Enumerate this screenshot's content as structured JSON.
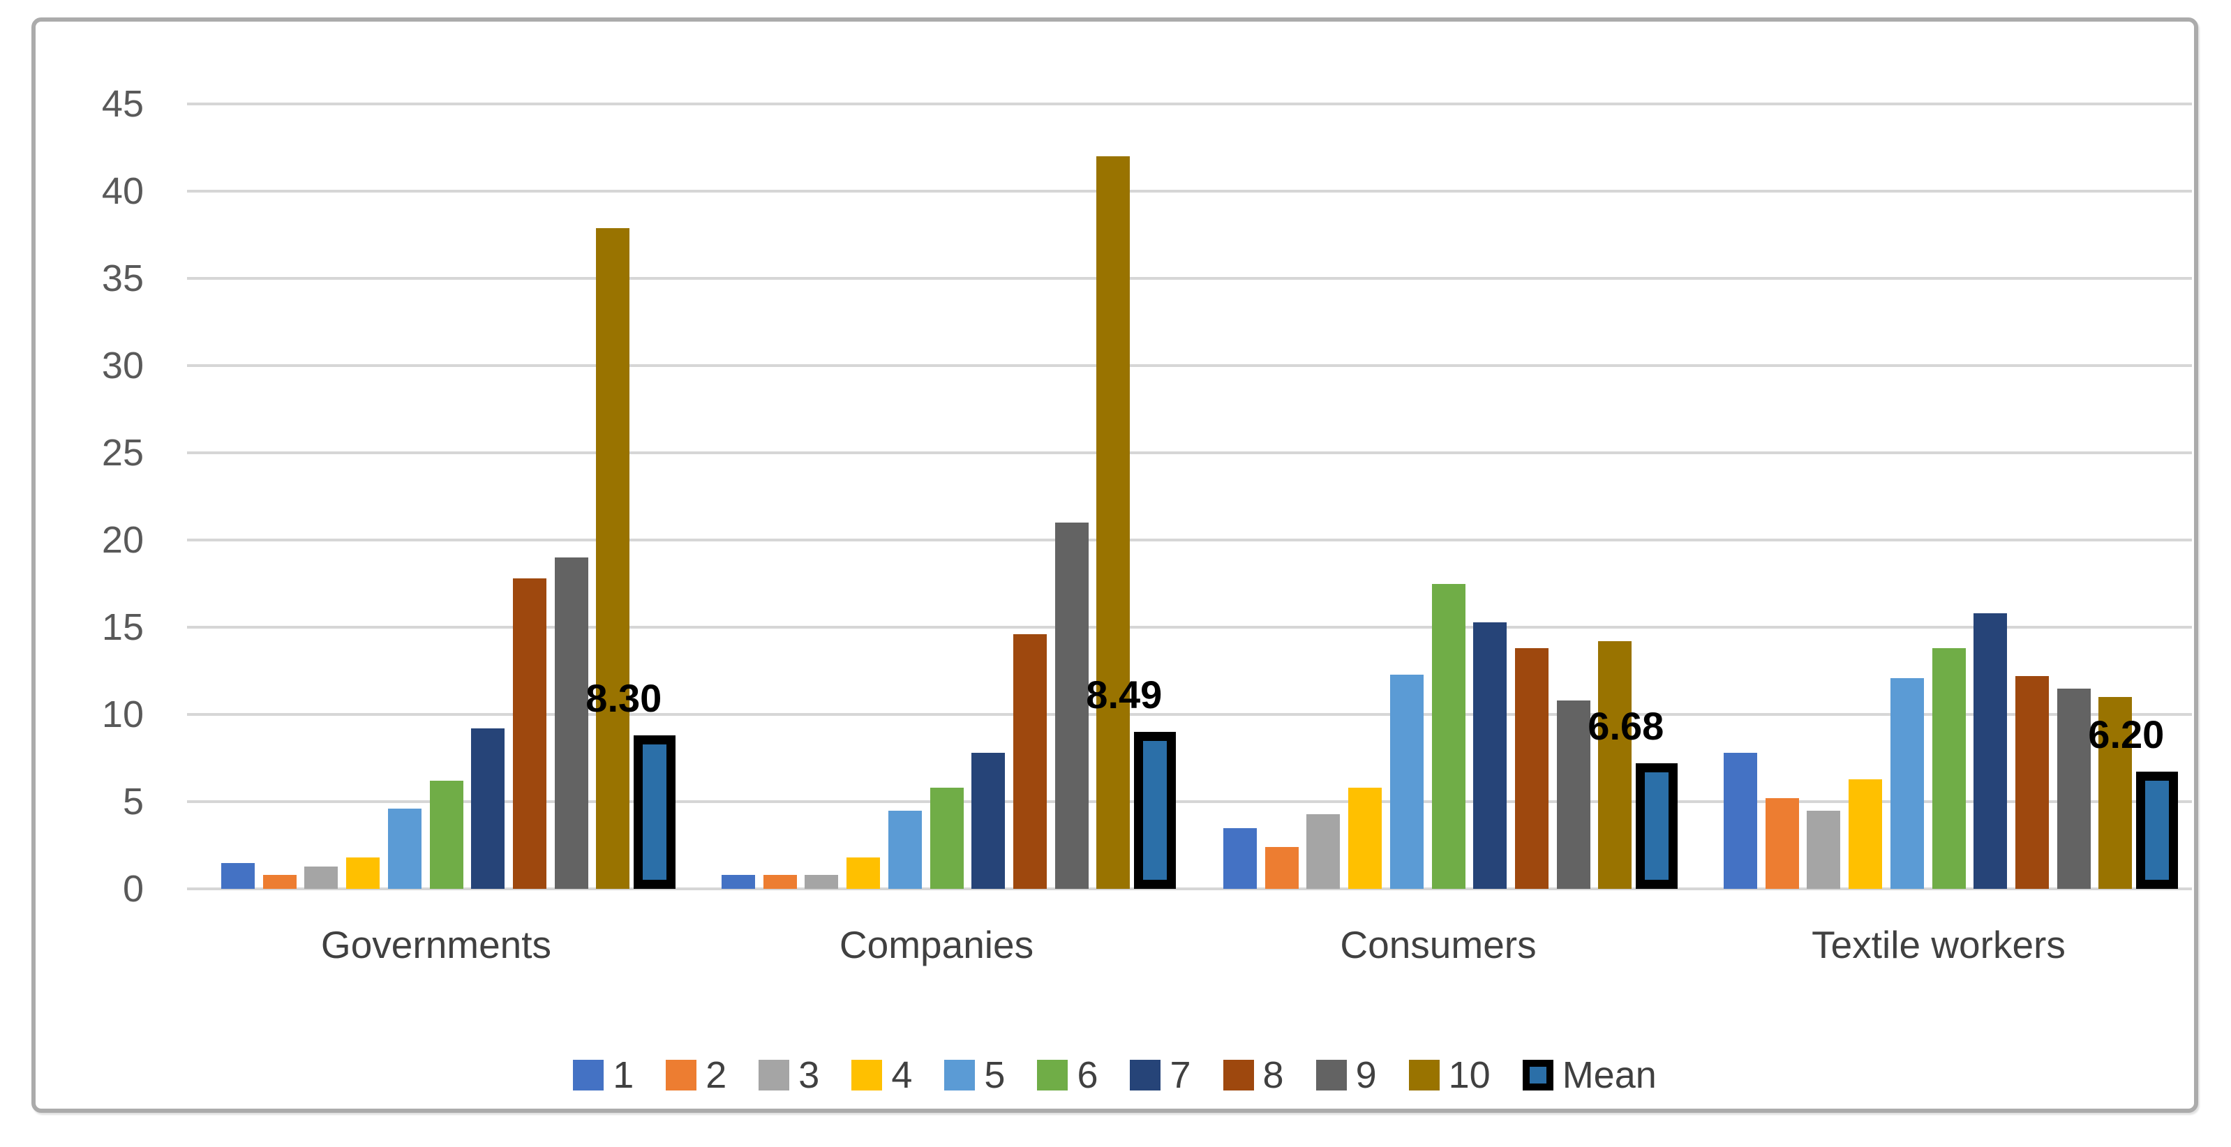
{
  "chart_data": {
    "type": "bar",
    "title": "",
    "xlabel": "",
    "ylabel": "",
    "categories": [
      "Governments",
      "Companies",
      "Consumers",
      "Textile workers"
    ],
    "series": [
      {
        "name": "1",
        "color": "#4472C4",
        "values": [
          1.5,
          0.8,
          3.5,
          7.8
        ]
      },
      {
        "name": "2",
        "color": "#ED7D31",
        "values": [
          0.8,
          0.8,
          2.4,
          5.2
        ]
      },
      {
        "name": "3",
        "color": "#A5A5A5",
        "values": [
          1.3,
          0.8,
          4.3,
          4.5
        ]
      },
      {
        "name": "4",
        "color": "#FFC000",
        "values": [
          1.8,
          1.8,
          5.8,
          6.3
        ]
      },
      {
        "name": "5",
        "color": "#5B9BD5",
        "values": [
          4.6,
          4.5,
          12.3,
          12.1
        ]
      },
      {
        "name": "6",
        "color": "#70AD47",
        "values": [
          6.2,
          5.8,
          17.5,
          13.8
        ]
      },
      {
        "name": "7",
        "color": "#264478",
        "values": [
          9.2,
          7.8,
          15.3,
          15.8
        ]
      },
      {
        "name": "8",
        "color": "#9E480E",
        "values": [
          17.8,
          14.6,
          13.8,
          12.2
        ]
      },
      {
        "name": "9",
        "color": "#636363",
        "values": [
          19.0,
          21.0,
          10.8,
          11.5
        ]
      },
      {
        "name": "10",
        "color": "#997300",
        "values": [
          37.9,
          42.0,
          14.2,
          11.0
        ]
      }
    ],
    "mean_series": {
      "name": "Mean",
      "fill_color": "#2B6FA8",
      "border_color": "#000000",
      "values": [
        8.3,
        8.49,
        6.68,
        6.2
      ],
      "data_labels": [
        "8.30",
        "8.49",
        "6.68",
        "6.20"
      ]
    },
    "ylim": [
      0,
      45
    ],
    "ytick_step": 5,
    "yticks": [
      "0",
      "5",
      "10",
      "15",
      "20",
      "25",
      "30",
      "35",
      "40",
      "45"
    ],
    "grid": true,
    "legend_position": "bottom",
    "legend_items": [
      "1",
      "2",
      "3",
      "4",
      "5",
      "6",
      "7",
      "8",
      "9",
      "10",
      "Mean"
    ]
  },
  "style_colors": {
    "gridline": "#d6d6d6",
    "tick_text": "#595959",
    "category_text": "#404040",
    "frame_border": "#ababab",
    "background": "#ffffff"
  }
}
